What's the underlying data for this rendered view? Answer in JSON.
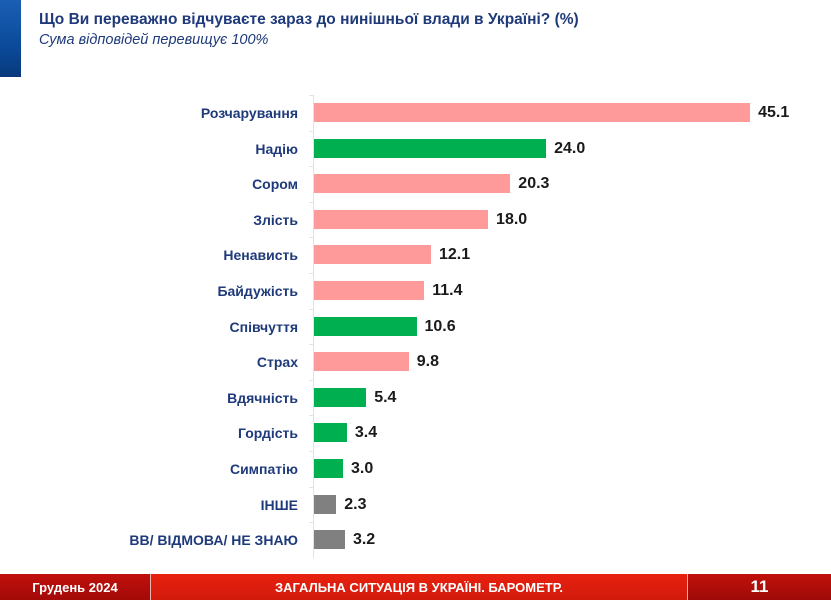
{
  "header": {
    "title": "Що Ви переважно відчуваєте зараз до нинішньої влади в Україні? (%)",
    "subtitle": "Сума відповідей перевищує 100%"
  },
  "colors": {
    "negative": "#ff9a9a",
    "positive": "#00b050",
    "neutral": "#808080",
    "title": "#1f3a7a",
    "accent": "#0b4a9a",
    "footer_red": "#d11a0c"
  },
  "chart_data": {
    "type": "bar",
    "orientation": "horizontal",
    "title": "Що Ви переважно відчуваєте зараз до нинішньої влади в Україні? (%)",
    "subtitle": "Сума відповідей перевищує 100%",
    "xlabel": "",
    "ylabel": "",
    "unit": "%",
    "grid": false,
    "legend": null,
    "categories": [
      "Розчарування",
      "Надію",
      "Сором",
      "Злість",
      "Ненависть",
      "Байдужість",
      "Співчуття",
      "Страх",
      "Вдячність",
      "Гордість",
      "Симпатію",
      "ІНШЕ",
      "ВВ/ ВІДМОВА/ НЕ ЗНАЮ"
    ],
    "values": [
      45.1,
      24.0,
      20.3,
      18.0,
      12.1,
      11.4,
      10.6,
      9.8,
      5.4,
      3.4,
      3.0,
      2.3,
      3.2
    ],
    "value_labels": [
      "45.1",
      "24.0",
      "20.3",
      "18.0",
      "12.1",
      "11.4",
      "10.6",
      "9.8",
      "5.4",
      "3.4",
      "3.0",
      "2.3",
      "3.2"
    ],
    "bar_types": [
      "negative",
      "positive",
      "negative",
      "negative",
      "negative",
      "negative",
      "positive",
      "negative",
      "positive",
      "positive",
      "positive",
      "neutral",
      "neutral"
    ]
  },
  "footer": {
    "date": "Грудень 2024",
    "section": "ЗАГАЛЬНА СИТУАЦІЯ В УКРАЇНІ. БАРОМЕТР.",
    "page_number": "11"
  }
}
